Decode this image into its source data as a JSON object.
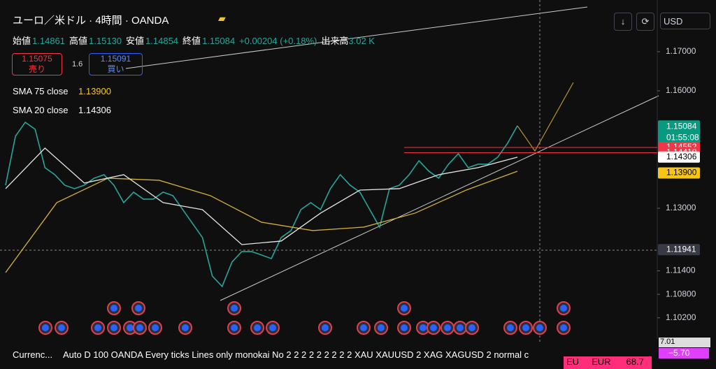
{
  "header": {
    "symbol": "ユーロ／米ドル · 4時間 · OANDA",
    "currency": "USD",
    "ohlc": [
      [
        "始値",
        "1.14861"
      ],
      [
        "高値",
        "1.15130"
      ],
      [
        "安値",
        "1.14854"
      ],
      [
        "終値",
        "1.15084"
      ]
    ],
    "change": "+0.00204 (+0.18%)",
    "volume_label": "出来高",
    "volume": "3.02 K",
    "sell_price": "1.15075",
    "sell": "売り",
    "spread": "1.6",
    "buy_price": "1.15091",
    "buy": "買い"
  },
  "chart_data": {
    "type": "line",
    "ylim": [
      1.0966,
      1.1832
    ],
    "yticks": [
      {
        "value": 1.17,
        "label": "1.17000"
      },
      {
        "value": 1.16,
        "label": "1.16000"
      },
      {
        "value": 1.13,
        "label": "1.13000"
      },
      {
        "value": 1.114,
        "label": "1.11400"
      },
      {
        "value": 1.108,
        "label": "1.10800"
      },
      {
        "value": 1.102,
        "label": "1.10200"
      }
    ],
    "series": [
      {
        "color": "#26a69a",
        "values": [
          1.13589,
          1.14839,
          1.15196,
          1.15018,
          1.14036,
          1.13857,
          1.13589,
          1.135,
          1.13589,
          1.13768,
          1.13857,
          1.13589,
          1.13143,
          1.13411,
          1.13232,
          1.13232,
          1.13411,
          1.13321,
          1.12964,
          1.12607,
          1.1225,
          1.11268,
          1.11,
          1.11625,
          1.11893,
          1.11893,
          1.11804,
          1.11714,
          1.1225,
          1.12429,
          1.12964,
          1.13143,
          1.12964,
          1.135,
          1.13857,
          1.13589,
          1.13411,
          1.12964,
          1.12518,
          1.135,
          1.13589,
          1.13857,
          1.14214,
          1.13946,
          1.13768,
          1.14125,
          1.14393,
          1.14036,
          1.14125,
          1.14125,
          1.14304,
          1.14661,
          1.15107
        ]
      },
      {
        "name": "SMA 75 close",
        "value_label": "1.13900",
        "color": "#d4b13a",
        "values": [
          1.11357,
          1.13143,
          1.13768,
          1.13714,
          1.13321,
          1.12643,
          1.12429,
          1.12518,
          1.12875,
          1.13464,
          1.13946
        ]
      },
      {
        "name": "SMA 20 close",
        "value_label": "1.14306",
        "color": "#e6e6e6",
        "values": [
          1.135,
          1.14536,
          1.13643,
          1.13857,
          1.13143,
          1.12964,
          1.12071,
          1.12161,
          1.12875,
          1.13464,
          1.135,
          1.13857,
          1.14036,
          1.14304
        ]
      }
    ],
    "price_labels": [
      {
        "value": 1.15084,
        "label": "1.15084",
        "bg": "#089981",
        "fg": "#ffffff",
        "sub": "01:55:08"
      },
      {
        "value": 1.14552,
        "label": "1.14552",
        "bg": "#f23645",
        "fg": "#ffffff"
      },
      {
        "value": 1.14419,
        "label": "1.14419",
        "bg": "#f23645",
        "fg": "#ffffff"
      },
      {
        "value": 1.14306,
        "label": "1.14306",
        "bg": "#ffffff",
        "fg": "#000000"
      },
      {
        "value": 1.139,
        "label": "1.13900",
        "bg": "#f5c518",
        "fg": "#000000"
      },
      {
        "value": 1.11941,
        "label": "1.11941",
        "bg": "#363a45",
        "fg": "#ffffff"
      }
    ]
  },
  "footer": {
    "name": "Currenc...",
    "settings": "Auto D 100 OANDA Every ticks Lines only monokai No 2 2 2 2 2 2 2 2 2 XAU XAUUSD 2 XAG XAGUSD 2 normal c",
    "badges": [
      "7.01",
      "−5.70"
    ],
    "row": [
      "EU",
      "EUR",
      "68.7"
    ]
  }
}
